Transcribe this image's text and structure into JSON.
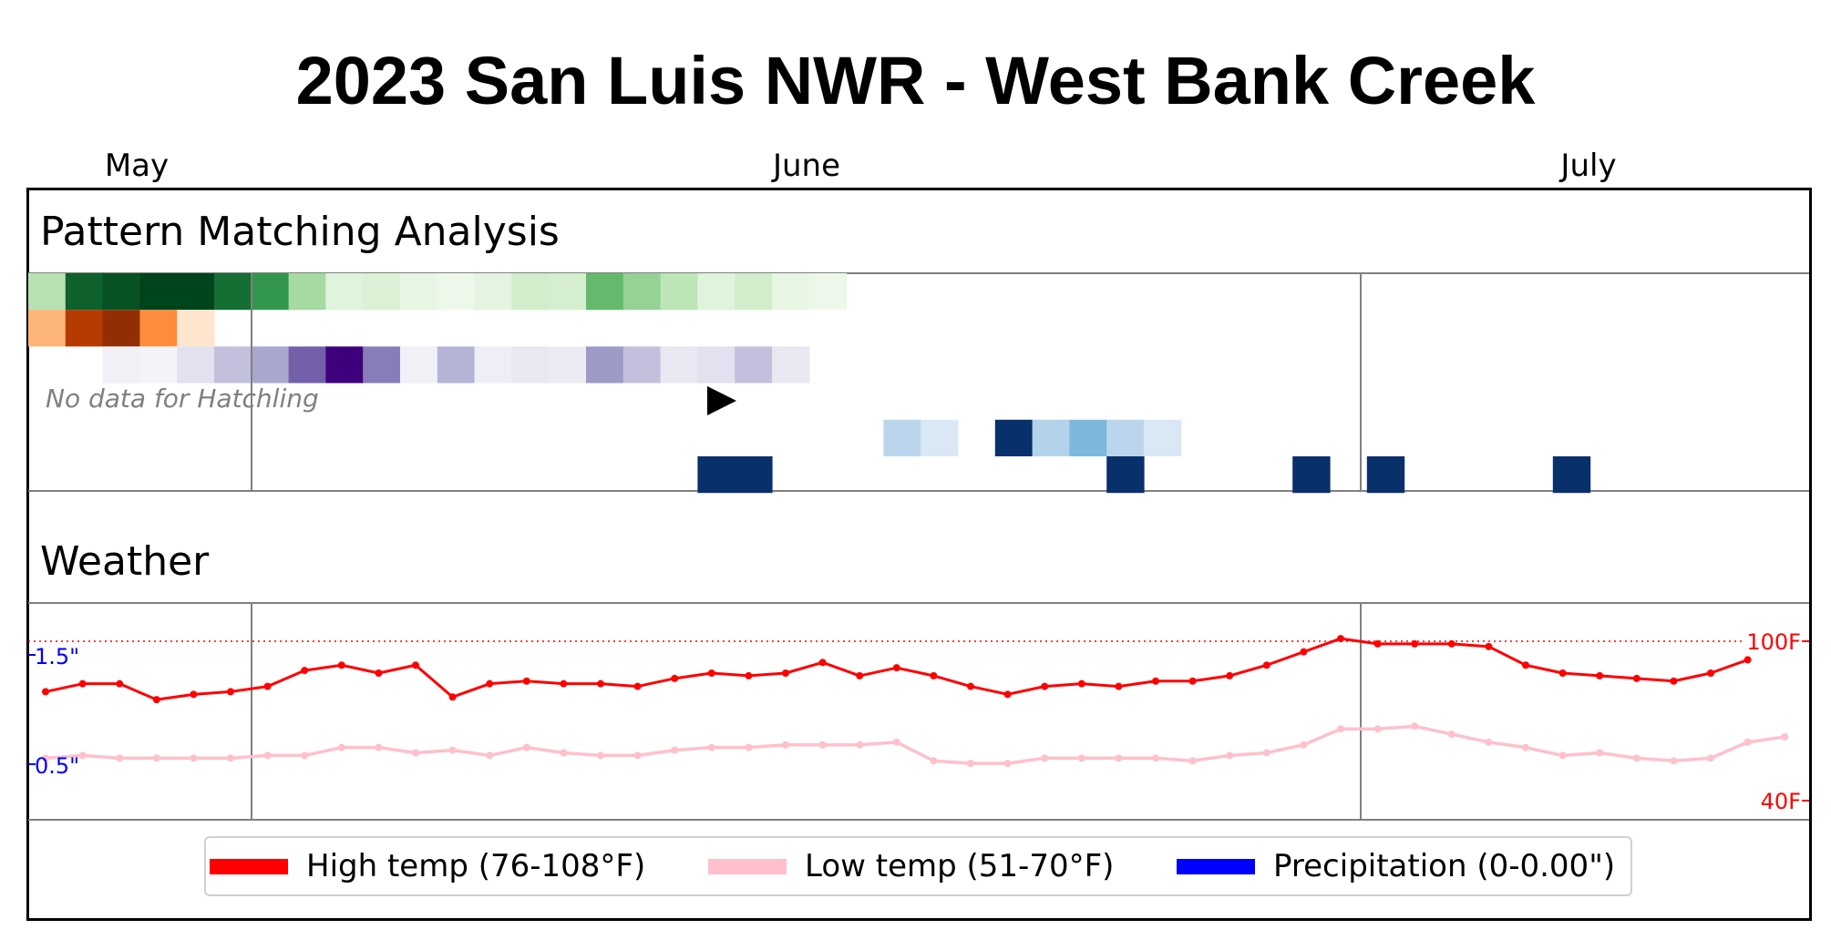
{
  "title": "2023 San Luis NWR - West Bank Creek",
  "months": [
    "May",
    "June",
    "July"
  ],
  "sections": {
    "pattern": "Pattern Matching Analysis",
    "weather": "Weather"
  },
  "colors": {
    "high_temp": "#ff0000",
    "low_temp": "#ffc0cb",
    "precipitation": "#0000ff",
    "heatmap_dark_blue": "#08306b"
  },
  "chart_data": [
    {
      "type": "heatmap",
      "title": "Pattern Matching Analysis",
      "x_start": "2023-04-25",
      "day_count": 48,
      "no_data_note": "No data for Hatchling",
      "marker": "play-triangle",
      "rows": [
        {
          "colormap": "Greens",
          "values": [
            0.3,
            0.9,
            0.95,
            1.0,
            1.0,
            0.85,
            0.7,
            0.35,
            0.12,
            0.15,
            0.08,
            0.05,
            0.1,
            0.2,
            0.18,
            0.55,
            0.4,
            0.28,
            0.12,
            0.2,
            0.08,
            0.05
          ]
        },
        {
          "colormap": "Oranges",
          "values": [
            0.35,
            0.85,
            0.95,
            0.5,
            0.1
          ]
        },
        {
          "colormap": "Purples",
          "values": [
            0,
            0,
            0.08,
            0.06,
            0.2,
            0.35,
            0.45,
            0.7,
            1.0,
            0.6,
            0.08,
            0.4,
            0.1,
            0.15,
            0.12,
            0.5,
            0.35,
            0.15,
            0.2,
            0.35,
            0.15
          ]
        },
        {
          "colormap": "none",
          "values": []
        },
        {
          "colormap": "Blues",
          "values": [
            0,
            0,
            0,
            0,
            0,
            0,
            0,
            0,
            0,
            0,
            0,
            0,
            0,
            0,
            0,
            0,
            0,
            0,
            0,
            0,
            0,
            0,
            0,
            0.28,
            0.15,
            0,
            1.0,
            0.3,
            0.45,
            0.28,
            0.15
          ]
        },
        {
          "colormap": "Blues",
          "values": [
            0,
            0,
            0,
            0,
            0,
            0,
            0,
            0,
            0,
            0,
            0,
            0,
            0,
            0,
            0,
            0,
            0,
            0,
            1,
            1,
            0,
            0,
            0,
            0,
            0,
            0,
            0,
            0,
            0,
            1,
            0,
            0,
            0,
            0,
            1,
            0,
            1,
            0,
            0,
            0,
            0,
            1
          ]
        }
      ]
    },
    {
      "type": "line",
      "title": "Weather",
      "x_start": "2023-04-25",
      "series": [
        {
          "name": "High temp (76-108°F)",
          "values": [
            81,
            84,
            84,
            78,
            80,
            81,
            83,
            89,
            91,
            88,
            91,
            79,
            84,
            85,
            84,
            84,
            83,
            86,
            88,
            87,
            88,
            92,
            87,
            90,
            87,
            83,
            80,
            83,
            84,
            83,
            85,
            85,
            87,
            91,
            96,
            101,
            99,
            99,
            99,
            98,
            91,
            88,
            87,
            86,
            85,
            88,
            93
          ]
        },
        {
          "name": "Low temp (51-70°F)",
          "values": [
            56,
            57,
            56,
            56,
            56,
            56,
            57,
            57,
            60,
            60,
            58,
            59,
            57,
            60,
            58,
            57,
            57,
            59,
            60,
            60,
            61,
            61,
            61,
            62,
            55,
            54,
            54,
            56,
            56,
            56,
            56,
            55,
            57,
            58,
            61,
            67,
            67,
            68,
            65,
            62,
            60,
            57,
            58,
            56,
            55,
            56,
            62,
            64
          ]
        },
        {
          "name": "Precipitation (0-0.00\")",
          "values": []
        }
      ],
      "y_left_ticks": [
        "1.5\"",
        "0.5\""
      ],
      "y_right_ticks": [
        "100F",
        "40F"
      ],
      "reference_line": "100F"
    }
  ],
  "legend": {
    "high": "High temp (76-108°F)",
    "low": "Low temp (51-70°F)",
    "precip": "Precipitation (0-0.00\")"
  }
}
